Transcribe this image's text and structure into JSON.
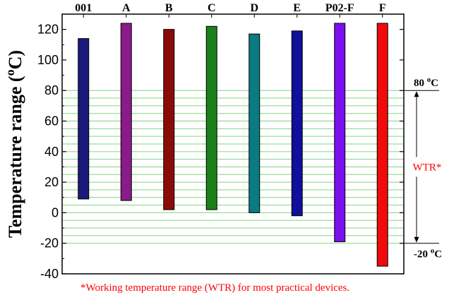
{
  "chart_data": {
    "type": "bar",
    "subtype": "floating-range",
    "title": "",
    "xlabel": "",
    "ylabel": "Temperature range (",
    "ylabel_unit_sup": "o",
    "ylabel_unit": "C)",
    "ylim": [
      -40,
      130
    ],
    "yticks": [
      -40,
      -20,
      0,
      20,
      40,
      60,
      80,
      100,
      120
    ],
    "ytick_labels": [
      "-40",
      "-20",
      "0",
      "20",
      "40",
      "60",
      "80",
      "100",
      "120"
    ],
    "categories": [
      "001",
      "A",
      "B",
      "C",
      "D",
      "E",
      "P02-F",
      "F"
    ],
    "ranges": [
      {
        "low": 9,
        "high": 114
      },
      {
        "low": 8,
        "high": 124
      },
      {
        "low": 2,
        "high": 120
      },
      {
        "low": 2,
        "high": 122
      },
      {
        "low": 0,
        "high": 117
      },
      {
        "low": -2,
        "high": 119
      },
      {
        "low": -19,
        "high": 124
      },
      {
        "low": -35,
        "high": 124
      }
    ],
    "bar_colors": [
      "#1a1a7a",
      "#8b1a8b",
      "#8b0a0a",
      "#1a801a",
      "#0a7b82",
      "#10109a",
      "#7a10f0",
      "#f00a0a"
    ],
    "wtr_band": {
      "low": -20,
      "high": 80,
      "line_step": 5,
      "line_color": "#7cd67c",
      "upper_label_value": "80",
      "upper_label_sup": "o",
      "upper_label_unit": "C",
      "lower_label_value": "-20",
      "lower_label_sup": "o",
      "lower_label_unit": "C",
      "label": "WTR*"
    },
    "footnote": "*Working temperature range (WTR) for most practical devices."
  }
}
